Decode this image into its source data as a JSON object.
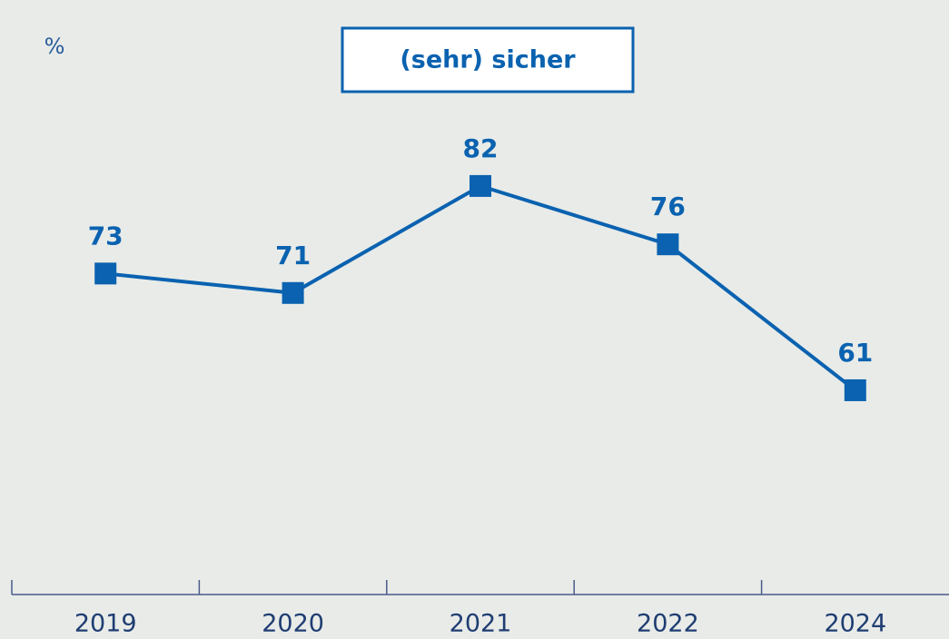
{
  "chart_data": {
    "type": "line",
    "unit_label": "%",
    "categories": [
      "2019",
      "2020",
      "2021",
      "2022",
      "2024"
    ],
    "series": [
      {
        "name": "(sehr) sicher",
        "color": "#0a62b0",
        "values": [
          73,
          71,
          82,
          76,
          61
        ]
      }
    ],
    "ylim": [
      40,
      100
    ]
  }
}
